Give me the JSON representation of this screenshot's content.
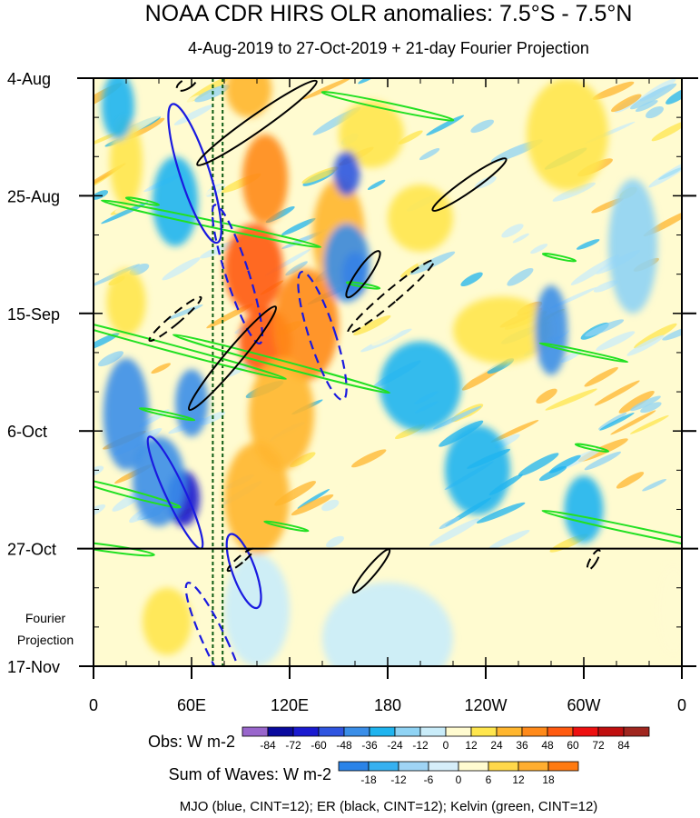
{
  "chart_data": {
    "type": "heatmap",
    "title": "NOAA CDR HIRS OLR anomalies: 7.5°S - 7.5°N",
    "subtitle": "4-Aug-2019 to 27-Oct-2019 + 21-day Fourier Projection",
    "x_ticks": [
      "0",
      "60E",
      "120E",
      "180",
      "120W",
      "60W",
      "0"
    ],
    "x_tick_lon": [
      0,
      60,
      120,
      180,
      240,
      300,
      360
    ],
    "y_ticks": [
      "4-Aug",
      "25-Aug",
      "15-Sep",
      "6-Oct",
      "27-Oct",
      "17-Nov"
    ],
    "y_tick_day": [
      0,
      21,
      42,
      63,
      84,
      105
    ],
    "observation_end_day": 84,
    "observation_end_label": "27-Oct",
    "projection_label_line1": "Fourier",
    "projection_label_line2": "Projection",
    "reference_lines_lon": [
      73,
      79
    ],
    "colorbar_obs": {
      "title": "Obs: W m-2",
      "levels": [
        "-84",
        "-72",
        "-60",
        "-48",
        "-36",
        "-24",
        "-12",
        "0",
        "12",
        "24",
        "36",
        "48",
        "60",
        "72",
        "84"
      ],
      "colors": [
        "#9966cc",
        "#0a0a9e",
        "#1a1ad0",
        "#2f55e0",
        "#3a8ee8",
        "#1fb4ef",
        "#8fd3f4",
        "#c9ecf9",
        "#fffbd0",
        "#ffe64d",
        "#ffb62e",
        "#ff8a1a",
        "#ff5a10",
        "#ee1010",
        "#c00f0f",
        "#a0261f"
      ]
    },
    "colorbar_waves": {
      "title": "Sum of Waves: W m-2",
      "levels": [
        "-18",
        "-12",
        "-6",
        "0",
        "6",
        "12",
        "18"
      ],
      "colors": [
        "#2a83e8",
        "#35b0f0",
        "#9fd4f5",
        "#d6eefa",
        "#fffbd0",
        "#ffd84a",
        "#ffae30",
        "#ff7a10"
      ]
    },
    "wave_legend": "MJO (blue, CINT=12); ER (black, CINT=12); Kelvin (green, CINT=12)",
    "anomaly_blobs": [
      {
        "lon": 95,
        "day": 2,
        "value": 30,
        "rlon": 14,
        "rday": 5
      },
      {
        "lon": 105,
        "day": 18,
        "value": 40,
        "rlon": 14,
        "rday": 8
      },
      {
        "lon": 98,
        "day": 34,
        "value": 50,
        "rlon": 18,
        "rday": 8
      },
      {
        "lon": 105,
        "day": 47,
        "value": 55,
        "rlon": 16,
        "rday": 6
      },
      {
        "lon": 130,
        "day": 44,
        "value": 40,
        "rlon": 20,
        "rday": 10
      },
      {
        "lon": 115,
        "day": 60,
        "value": 35,
        "rlon": 20,
        "rday": 10
      },
      {
        "lon": 100,
        "day": 75,
        "value": 30,
        "rlon": 20,
        "rday": 10
      },
      {
        "lon": 150,
        "day": 28,
        "value": 30,
        "rlon": 16,
        "rday": 10
      },
      {
        "lon": 200,
        "day": 25,
        "value": 24,
        "rlon": 20,
        "rday": 6
      },
      {
        "lon": 250,
        "day": 45,
        "value": 20,
        "rlon": 30,
        "rday": 6
      },
      {
        "lon": 290,
        "day": 10,
        "value": 18,
        "rlon": 25,
        "rday": 10
      },
      {
        "lon": 170,
        "day": 10,
        "value": 22,
        "rlon": 20,
        "rday": 6
      },
      {
        "lon": 20,
        "day": 40,
        "value": 24,
        "rlon": 12,
        "rday": 6
      },
      {
        "lon": 20,
        "day": 15,
        "value": 18,
        "rlon": 10,
        "rday": 8
      },
      {
        "lon": 45,
        "day": 97,
        "value": 15,
        "rlon": 15,
        "rday": 6
      },
      {
        "lon": 355,
        "day": 95,
        "value": 12,
        "rlon": 10,
        "rday": 8
      },
      {
        "lon": 55,
        "day": 75,
        "value": -60,
        "rlon": 10,
        "rday": 5
      },
      {
        "lon": 40,
        "day": 72,
        "value": -45,
        "rlon": 16,
        "rday": 8
      },
      {
        "lon": 20,
        "day": 60,
        "value": -40,
        "rlon": 14,
        "rday": 10
      },
      {
        "lon": 60,
        "day": 58,
        "value": -45,
        "rlon": 10,
        "rday": 6
      },
      {
        "lon": 160,
        "day": 35,
        "value": -70,
        "rlon": 8,
        "rday": 4
      },
      {
        "lon": 155,
        "day": 33,
        "value": -40,
        "rlon": 14,
        "rday": 7
      },
      {
        "lon": 155,
        "day": 17,
        "value": -50,
        "rlon": 8,
        "rday": 4
      },
      {
        "lon": 50,
        "day": 22,
        "value": -35,
        "rlon": 14,
        "rday": 8
      },
      {
        "lon": 15,
        "day": 5,
        "value": -30,
        "rlon": 10,
        "rday": 6
      },
      {
        "lon": 280,
        "day": 45,
        "value": -40,
        "rlon": 10,
        "rday": 8
      },
      {
        "lon": 300,
        "day": 77,
        "value": -35,
        "rlon": 12,
        "rday": 6
      },
      {
        "lon": 235,
        "day": 70,
        "value": -25,
        "rlon": 20,
        "rday": 8
      },
      {
        "lon": 200,
        "day": 55,
        "value": -25,
        "rlon": 25,
        "rday": 8
      },
      {
        "lon": 330,
        "day": 30,
        "value": -20,
        "rlon": 15,
        "rday": 12
      },
      {
        "lon": 100,
        "day": 95,
        "value": -10,
        "rlon": 20,
        "rday": 10
      },
      {
        "lon": 180,
        "day": 100,
        "value": -8,
        "rlon": 40,
        "rday": 10
      }
    ],
    "mjo_contours": [
      {
        "lon": 62,
        "day": 17,
        "rlon": 9,
        "rday": 13,
        "angle": -18,
        "dashed": false
      },
      {
        "lon": 50,
        "day": 74,
        "rlon": 6,
        "rday": 11,
        "angle": -25,
        "dashed": false
      },
      {
        "lon": 92,
        "day": 88,
        "rlon": 7,
        "rday": 7,
        "angle": -20,
        "dashed": false
      },
      {
        "lon": 88,
        "day": 35,
        "rlon": 7,
        "rday": 13,
        "angle": -18,
        "dashed": true
      },
      {
        "lon": 140,
        "day": 46,
        "rlon": 8,
        "rday": 12,
        "angle": -18,
        "dashed": true
      },
      {
        "lon": 75,
        "day": 101,
        "rlon": 7,
        "rday": 12,
        "angle": -25,
        "dashed": true
      }
    ],
    "er_contours": [
      {
        "lon": 100,
        "day": 8,
        "rlon": 5,
        "rday": 13,
        "angle": 55,
        "dashed": false
      },
      {
        "lon": 85,
        "day": 50,
        "rlon": 5,
        "rday": 12,
        "angle": 40,
        "dashed": false
      },
      {
        "lon": 165,
        "day": 35,
        "rlon": 4,
        "rday": 5,
        "angle": 35,
        "dashed": false
      },
      {
        "lon": 230,
        "day": 19,
        "rlon": 4,
        "rday": 8,
        "angle": 55,
        "dashed": false
      },
      {
        "lon": 170,
        "day": 88,
        "rlon": 3,
        "rday": 5,
        "angle": 40,
        "dashed": false
      },
      {
        "lon": 182,
        "day": 39,
        "rlon": 4,
        "rday": 10,
        "angle": 50,
        "dashed": true
      },
      {
        "lon": 50,
        "day": 43,
        "rlon": 3,
        "rday": 6,
        "angle": 50,
        "dashed": true
      },
      {
        "lon": 57,
        "day": 1,
        "rlon": 3,
        "rday": 2,
        "angle": 60,
        "dashed": true
      },
      {
        "lon": 90,
        "day": 86,
        "rlon": 2,
        "rday": 3,
        "angle": 50,
        "dashed": true
      },
      {
        "lon": 306,
        "day": 86,
        "rlon": 2,
        "rday": 2,
        "angle": 30,
        "dashed": true
      }
    ],
    "kelvin_contours": [
      {
        "lon": 180,
        "day": 5,
        "rlon": 2,
        "rday": 12,
        "angle": -78,
        "dashed": false
      },
      {
        "lon": 72,
        "day": 26,
        "rlon": 2,
        "rday": 20,
        "angle": -78,
        "dashed": false
      },
      {
        "lon": 30,
        "day": 22,
        "rlon": 1,
        "rday": 3,
        "angle": -78,
        "dashed": false
      },
      {
        "lon": 45,
        "day": 48,
        "rlon": 2,
        "rday": 22,
        "angle": -75,
        "dashed": false
      },
      {
        "lon": 115,
        "day": 51,
        "rlon": 2,
        "rday": 20,
        "angle": -75,
        "dashed": false
      },
      {
        "lon": 45,
        "day": 60,
        "rlon": 1,
        "rday": 5,
        "angle": -78,
        "dashed": false
      },
      {
        "lon": 20,
        "day": 74,
        "rlon": 2,
        "rday": 10,
        "angle": -75,
        "dashed": false
      },
      {
        "lon": 118,
        "day": 80,
        "rlon": 1,
        "rday": 4,
        "angle": -78,
        "dashed": false
      },
      {
        "lon": 335,
        "day": 81,
        "rlon": 2,
        "rday": 18,
        "angle": -78,
        "dashed": false
      },
      {
        "lon": 10,
        "day": 84,
        "rlon": 2,
        "rday": 8,
        "angle": -82,
        "dashed": false
      },
      {
        "lon": 300,
        "day": 49,
        "rlon": 1,
        "rday": 8,
        "angle": -78,
        "dashed": false
      },
      {
        "lon": 305,
        "day": 66,
        "rlon": 1,
        "rday": 3,
        "angle": -78,
        "dashed": false
      },
      {
        "lon": 285,
        "day": 32,
        "rlon": 1,
        "rday": 3,
        "angle": -78,
        "dashed": false
      },
      {
        "lon": 165,
        "day": 37,
        "rlon": 1,
        "rday": 3,
        "angle": -80,
        "dashed": false
      }
    ]
  }
}
